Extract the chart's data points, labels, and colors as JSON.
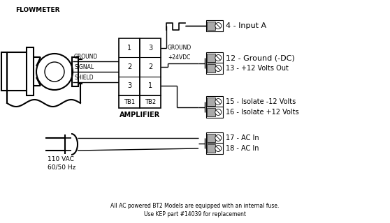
{
  "bg_color": "#ffffff",
  "title_flowmeter": "FLOWMETER",
  "labels_left": [
    "GROUND",
    "SIGNAL",
    "SHIELD"
  ],
  "tb1_labels": [
    "1",
    "2",
    "3"
  ],
  "tb2_labels": [
    "3",
    "2",
    "1"
  ],
  "tb1_text": "TB1",
  "tb2_text": "TB2",
  "amp_text": "AMPLIFIER",
  "terminal_labels": [
    "4 - Input A",
    "12 - Ground (-DC)",
    "13 - +12 Volts Out",
    "15 - Isolate -12 Volts",
    "16 - Isolate +12 Volts",
    "17 - AC In",
    "18 - AC In"
  ],
  "ground_text": "GROUND",
  "vdc_text": "+24VDC",
  "vac_text": "110 VAC",
  "hz_text": "60/50 Hz",
  "footer1": "All AC powered BT2 Models are equipped with an internal fuse.",
  "footer2": "Use KEP part #14039 for replacement",
  "conn_gray": "#aaaaaa",
  "conn_white": "#ffffff"
}
